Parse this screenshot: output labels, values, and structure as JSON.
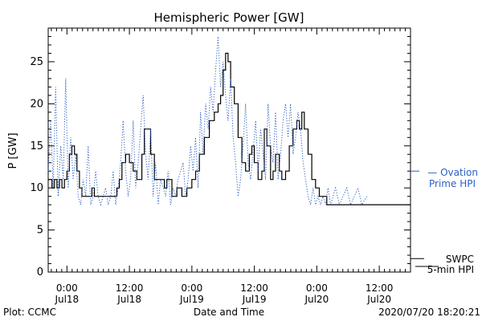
{
  "chart_data": {
    "type": "line",
    "title": "Hemispheric Power [GW]",
    "ylabel": "P [GW]",
    "xlabel": "Date and Time",
    "ylim": [
      0,
      29
    ],
    "xlim": [
      -0.15,
      2.75
    ],
    "y_ticks": [
      0,
      5,
      10,
      15,
      20,
      25
    ],
    "x_ticks": [
      {
        "x": 0.0,
        "time": "0:00",
        "date": "Jul18"
      },
      {
        "x": 0.5,
        "time": "12:00",
        "date": "Jul18"
      },
      {
        "x": 1.0,
        "time": "0:00",
        "date": "Jul19"
      },
      {
        "x": 1.5,
        "time": "12:00",
        "date": "Jul19"
      },
      {
        "x": 2.0,
        "time": "0:00",
        "date": "Jul20"
      },
      {
        "x": 2.5,
        "time": "12:00",
        "date": "Jul20"
      }
    ],
    "x_unit": "days since 2020-07-18 00:00",
    "series": [
      {
        "name": "SWPC 5-min HPI",
        "style": "solid",
        "color": "#000000",
        "points": [
          [
            -0.15,
            11
          ],
          [
            -0.12,
            10
          ],
          [
            -0.1,
            11
          ],
          [
            -0.08,
            10
          ],
          [
            -0.06,
            11
          ],
          [
            -0.04,
            10
          ],
          [
            -0.02,
            11
          ],
          [
            0.0,
            12
          ],
          [
            0.02,
            14
          ],
          [
            0.04,
            15
          ],
          [
            0.06,
            14
          ],
          [
            0.08,
            12
          ],
          [
            0.1,
            10
          ],
          [
            0.12,
            9
          ],
          [
            0.16,
            9
          ],
          [
            0.2,
            10
          ],
          [
            0.22,
            9
          ],
          [
            0.26,
            9
          ],
          [
            0.3,
            9
          ],
          [
            0.34,
            9
          ],
          [
            0.38,
            9
          ],
          [
            0.4,
            10
          ],
          [
            0.42,
            11
          ],
          [
            0.44,
            13
          ],
          [
            0.47,
            14
          ],
          [
            0.5,
            13
          ],
          [
            0.53,
            12
          ],
          [
            0.56,
            11
          ],
          [
            0.6,
            14
          ],
          [
            0.62,
            17
          ],
          [
            0.65,
            17
          ],
          [
            0.67,
            14
          ],
          [
            0.7,
            11
          ],
          [
            0.74,
            11
          ],
          [
            0.78,
            10
          ],
          [
            0.8,
            11
          ],
          [
            0.84,
            9
          ],
          [
            0.88,
            10
          ],
          [
            0.92,
            9
          ],
          [
            0.96,
            10
          ],
          [
            1.0,
            11
          ],
          [
            1.03,
            12
          ],
          [
            1.06,
            14
          ],
          [
            1.1,
            16
          ],
          [
            1.14,
            18
          ],
          [
            1.18,
            19
          ],
          [
            1.21,
            20
          ],
          [
            1.23,
            21
          ],
          [
            1.25,
            24
          ],
          [
            1.27,
            26
          ],
          [
            1.29,
            25
          ],
          [
            1.31,
            22
          ],
          [
            1.34,
            20
          ],
          [
            1.37,
            16
          ],
          [
            1.4,
            13
          ],
          [
            1.43,
            12
          ],
          [
            1.46,
            14
          ],
          [
            1.48,
            15
          ],
          [
            1.5,
            13
          ],
          [
            1.53,
            11
          ],
          [
            1.56,
            12
          ],
          [
            1.58,
            17
          ],
          [
            1.6,
            15
          ],
          [
            1.63,
            11
          ],
          [
            1.65,
            12
          ],
          [
            1.67,
            14
          ],
          [
            1.7,
            12
          ],
          [
            1.72,
            11
          ],
          [
            1.75,
            12
          ],
          [
            1.78,
            15
          ],
          [
            1.81,
            17
          ],
          [
            1.84,
            18
          ],
          [
            1.86,
            17
          ],
          [
            1.88,
            19
          ],
          [
            1.9,
            17
          ],
          [
            1.93,
            14
          ],
          [
            1.96,
            11
          ],
          [
            1.99,
            10
          ],
          [
            2.02,
            9
          ],
          [
            2.05,
            9
          ],
          [
            2.08,
            8
          ],
          [
            2.2,
            8
          ],
          [
            2.4,
            8
          ],
          [
            2.6,
            8
          ],
          [
            2.75,
            8
          ]
        ]
      },
      {
        "name": "Ovation Prime HPI",
        "style": "dotted",
        "color": "#2a5fc4",
        "points": [
          [
            -0.15,
            12
          ],
          [
            -0.13,
            18
          ],
          [
            -0.11,
            10
          ],
          [
            -0.09,
            22
          ],
          [
            -0.07,
            9
          ],
          [
            -0.05,
            15
          ],
          [
            -0.03,
            11
          ],
          [
            -0.01,
            23
          ],
          [
            0.01,
            10
          ],
          [
            0.03,
            16
          ],
          [
            0.05,
            11
          ],
          [
            0.07,
            14
          ],
          [
            0.09,
            9
          ],
          [
            0.11,
            8
          ],
          [
            0.13,
            11
          ],
          [
            0.15,
            9
          ],
          [
            0.17,
            15
          ],
          [
            0.19,
            8
          ],
          [
            0.21,
            9
          ],
          [
            0.23,
            12
          ],
          [
            0.25,
            9
          ],
          [
            0.27,
            8
          ],
          [
            0.29,
            9
          ],
          [
            0.31,
            10
          ],
          [
            0.33,
            8
          ],
          [
            0.35,
            9
          ],
          [
            0.37,
            12
          ],
          [
            0.39,
            8
          ],
          [
            0.41,
            10
          ],
          [
            0.43,
            13
          ],
          [
            0.45,
            18
          ],
          [
            0.47,
            12
          ],
          [
            0.49,
            9
          ],
          [
            0.51,
            11
          ],
          [
            0.53,
            18
          ],
          [
            0.55,
            10
          ],
          [
            0.57,
            13
          ],
          [
            0.59,
            17
          ],
          [
            0.61,
            21
          ],
          [
            0.63,
            14
          ],
          [
            0.65,
            11
          ],
          [
            0.67,
            17
          ],
          [
            0.69,
            9
          ],
          [
            0.71,
            13
          ],
          [
            0.73,
            8
          ],
          [
            0.75,
            11
          ],
          [
            0.77,
            10
          ],
          [
            0.79,
            9
          ],
          [
            0.81,
            12
          ],
          [
            0.83,
            8
          ],
          [
            0.85,
            10
          ],
          [
            0.87,
            9
          ],
          [
            0.89,
            11
          ],
          [
            0.91,
            12
          ],
          [
            0.93,
            13
          ],
          [
            0.95,
            9
          ],
          [
            0.97,
            11
          ],
          [
            0.99,
            15
          ],
          [
            1.01,
            12
          ],
          [
            1.03,
            16
          ],
          [
            1.05,
            10
          ],
          [
            1.07,
            19
          ],
          [
            1.09,
            14
          ],
          [
            1.11,
            20
          ],
          [
            1.13,
            17
          ],
          [
            1.15,
            22
          ],
          [
            1.17,
            19
          ],
          [
            1.19,
            24
          ],
          [
            1.21,
            28
          ],
          [
            1.23,
            22
          ],
          [
            1.25,
            25
          ],
          [
            1.27,
            21
          ],
          [
            1.29,
            18
          ],
          [
            1.31,
            23
          ],
          [
            1.33,
            16
          ],
          [
            1.35,
            13
          ],
          [
            1.37,
            9
          ],
          [
            1.39,
            11
          ],
          [
            1.41,
            15
          ],
          [
            1.43,
            20
          ],
          [
            1.45,
            13
          ],
          [
            1.47,
            11
          ],
          [
            1.49,
            14
          ],
          [
            1.51,
            18
          ],
          [
            1.53,
            12
          ],
          [
            1.55,
            17
          ],
          [
            1.57,
            14
          ],
          [
            1.59,
            11
          ],
          [
            1.61,
            20
          ],
          [
            1.63,
            15
          ],
          [
            1.65,
            13
          ],
          [
            1.67,
            19
          ],
          [
            1.69,
            11
          ],
          [
            1.71,
            14
          ],
          [
            1.73,
            18
          ],
          [
            1.75,
            20
          ],
          [
            1.77,
            16
          ],
          [
            1.79,
            20
          ],
          [
            1.81,
            14
          ],
          [
            1.83,
            16
          ],
          [
            1.85,
            19
          ],
          [
            1.87,
            17
          ],
          [
            1.89,
            13
          ],
          [
            1.91,
            11
          ],
          [
            1.93,
            9
          ],
          [
            1.95,
            8
          ],
          [
            1.97,
            10
          ],
          [
            1.99,
            8
          ],
          [
            2.01,
            9
          ],
          [
            2.03,
            8
          ],
          [
            2.05,
            9
          ],
          [
            2.07,
            8
          ],
          [
            2.09,
            10
          ],
          [
            2.11,
            8
          ],
          [
            2.13,
            9
          ],
          [
            2.15,
            10
          ],
          [
            2.18,
            8
          ],
          [
            2.21,
            9
          ],
          [
            2.24,
            10
          ],
          [
            2.27,
            8
          ],
          [
            2.3,
            9
          ],
          [
            2.33,
            10
          ],
          [
            2.36,
            8
          ],
          [
            2.4,
            9
          ]
        ]
      }
    ],
    "legend": [
      {
        "label": "— Ovation",
        "label2": "Prime HPI",
        "color": "#2a5fc4"
      },
      {
        "label": "SWPC",
        "label2": "5-min HPI",
        "color": "#000000"
      }
    ],
    "footer_left": "Plot: CCMC",
    "footer_right": "2020/07/20 18:20:21"
  }
}
